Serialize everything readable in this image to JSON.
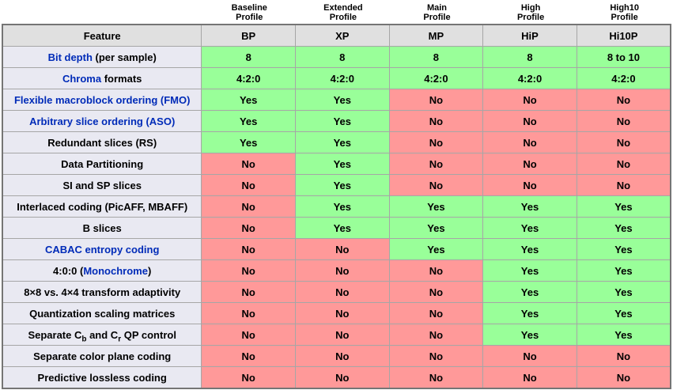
{
  "colors": {
    "yes_bg": "#99ff99",
    "no_bg": "#ff9999",
    "header_bg": "#e0e0e0",
    "feature_bg": "#e9e9f2",
    "link": "#002bb8",
    "border_inner": "#a6a6a6",
    "border_outer": "#757575"
  },
  "profiles": [
    {
      "line1": "Baseline",
      "line2": "Profile",
      "abbr": "BP"
    },
    {
      "line1": "Extended",
      "line2": "Profile",
      "abbr": "XP"
    },
    {
      "line1": "Main",
      "line2": "Profile",
      "abbr": "MP"
    },
    {
      "line1": "High",
      "line2": "Profile",
      "abbr": "HiP"
    },
    {
      "line1": "High10",
      "line2": "Profile",
      "abbr": "Hi10P"
    }
  ],
  "table": {
    "feature_header": "Feature",
    "rows": [
      {
        "feature": [
          {
            "t": "Bit depth",
            "link": true
          },
          {
            "t": " (per sample)"
          }
        ],
        "values": [
          "8",
          "8",
          "8",
          "8",
          "8 to 10"
        ]
      },
      {
        "feature": [
          {
            "t": "Chroma",
            "link": true
          },
          {
            "t": " formats"
          }
        ],
        "values": [
          "4:2:0",
          "4:2:0",
          "4:2:0",
          "4:2:0",
          "4:2:0"
        ]
      },
      {
        "feature": [
          {
            "t": "Flexible macroblock ordering (FMO)",
            "link": true
          }
        ],
        "values": [
          "Yes",
          "Yes",
          "No",
          "No",
          "No"
        ]
      },
      {
        "feature": [
          {
            "t": "Arbitrary slice ordering (ASO)",
            "link": true
          }
        ],
        "values": [
          "Yes",
          "Yes",
          "No",
          "No",
          "No"
        ]
      },
      {
        "feature": [
          {
            "t": "Redundant slices (RS)"
          }
        ],
        "values": [
          "Yes",
          "Yes",
          "No",
          "No",
          "No"
        ]
      },
      {
        "feature": [
          {
            "t": "Data Partitioning"
          }
        ],
        "values": [
          "No",
          "Yes",
          "No",
          "No",
          "No"
        ]
      },
      {
        "feature": [
          {
            "t": "SI and SP slices"
          }
        ],
        "values": [
          "No",
          "Yes",
          "No",
          "No",
          "No"
        ]
      },
      {
        "feature": [
          {
            "t": "Interlaced coding (PicAFF, MBAFF)"
          }
        ],
        "values": [
          "No",
          "Yes",
          "Yes",
          "Yes",
          "Yes"
        ]
      },
      {
        "feature": [
          {
            "t": "B slices"
          }
        ],
        "values": [
          "No",
          "Yes",
          "Yes",
          "Yes",
          "Yes"
        ]
      },
      {
        "feature": [
          {
            "t": "CABAC entropy coding",
            "link": true
          }
        ],
        "values": [
          "No",
          "No",
          "Yes",
          "Yes",
          "Yes"
        ]
      },
      {
        "feature": [
          {
            "t": "4:0:0 ("
          },
          {
            "t": "Monochrome",
            "link": true
          },
          {
            "t": ")"
          }
        ],
        "values": [
          "No",
          "No",
          "No",
          "Yes",
          "Yes"
        ]
      },
      {
        "feature": [
          {
            "t": "8×8 vs. 4×4 transform adaptivity"
          }
        ],
        "values": [
          "No",
          "No",
          "No",
          "Yes",
          "Yes"
        ]
      },
      {
        "feature": [
          {
            "t": "Quantization scaling matrices"
          }
        ],
        "values": [
          "No",
          "No",
          "No",
          "Yes",
          "Yes"
        ]
      },
      {
        "feature": [
          {
            "t": "Separate C"
          },
          {
            "t": "b",
            "sub": true
          },
          {
            "t": " and C"
          },
          {
            "t": "r",
            "sub": true
          },
          {
            "t": " QP control"
          }
        ],
        "values": [
          "No",
          "No",
          "No",
          "Yes",
          "Yes"
        ]
      },
      {
        "feature": [
          {
            "t": "Separate color plane coding"
          }
        ],
        "values": [
          "No",
          "No",
          "No",
          "No",
          "No"
        ]
      },
      {
        "feature": [
          {
            "t": "Predictive lossless coding"
          }
        ],
        "values": [
          "No",
          "No",
          "No",
          "No",
          "No"
        ]
      }
    ]
  }
}
